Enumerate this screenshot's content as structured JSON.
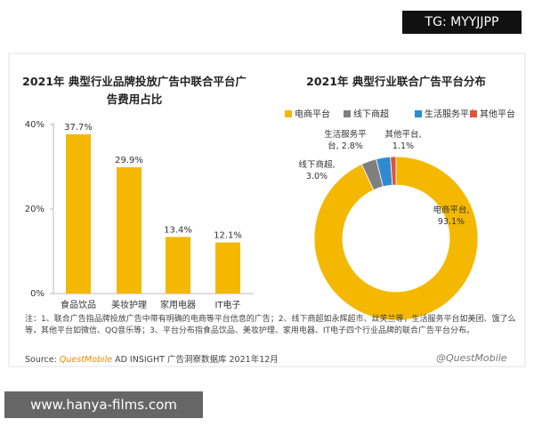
{
  "tag": "TG: MYYJJPP",
  "website": "www.hanya-films.com",
  "chart_data": [
    {
      "type": "bar",
      "title": "2021年 典型行业品牌投放广告中联合平台广告费用占比",
      "categories": [
        "食品饮品",
        "美妆护理",
        "家用电器",
        "IT电子"
      ],
      "values": [
        37.7,
        29.9,
        13.4,
        12.1
      ],
      "value_labels": [
        "37.7%",
        "29.9%",
        "13.4%",
        "12.1%"
      ],
      "color": "#f5b800",
      "ylim": [
        0,
        40
      ],
      "yticks": [
        {
          "value": 0,
          "label": "0%"
        },
        {
          "value": 20,
          "label": "20%"
        },
        {
          "value": 40,
          "label": "40%"
        }
      ],
      "grid": false
    },
    {
      "type": "pie",
      "title": "2021年 典型行业联合广告平台分布",
      "categories": [
        "电商平台",
        "线下商超",
        "生活服务平台",
        "其他平台"
      ],
      "values": [
        93.1,
        3.0,
        2.8,
        1.1
      ],
      "value_labels": [
        "电商平台,\n93.1%",
        "线下商超,\n3.0%",
        "生活服务平\n台, 2.8%",
        "其他平台,\n1.1%"
      ],
      "colors": [
        "#f5b800",
        "#7f7f7f",
        "#2e8bd1",
        "#e0533c"
      ],
      "donut": true
    }
  ],
  "notes": {
    "note": "注：1、联合广告指品牌投放广告中带有明确的电商等平台信息的广告；2、线下商超如永辉超市、丝芙兰等，生活服务平台如美团、饿了么等，其他平台如微信、QQ音乐等；3、平台分布指食品饮品、美妆护理、家用电器、IT电子四个行业品牌的联合广告平台分布。",
    "source_label": "Source:",
    "source_brand": "QuestMobile",
    "source_text": "AD INSIGHT 广告洞察数据库 2021年12月",
    "watermark": "@QuestMobile"
  }
}
